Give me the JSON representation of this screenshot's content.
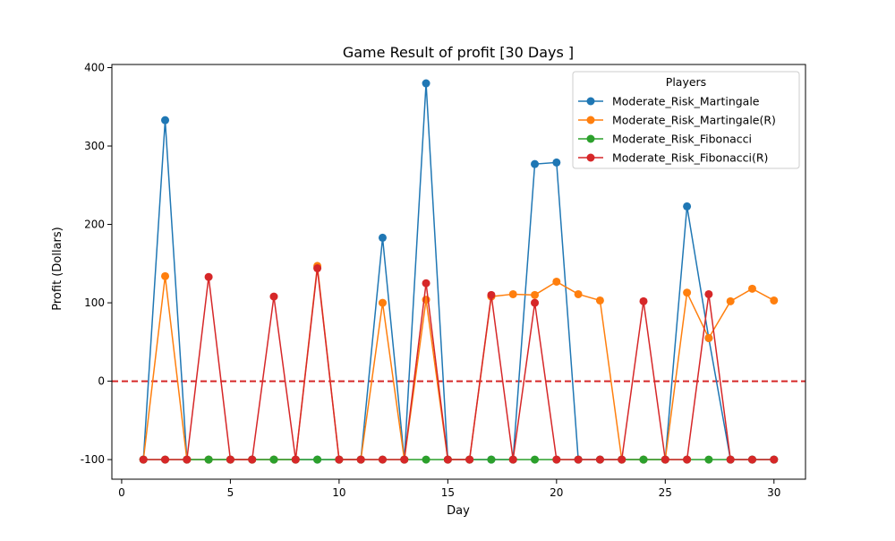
{
  "chart_data": {
    "type": "line",
    "title": "Game Result of profit [30 Days ]",
    "xlabel": "Day",
    "ylabel": "Profit (Dollars)",
    "xlim": [
      -0.45,
      31.45
    ],
    "ylim": [
      -125,
      404
    ],
    "xticks": [
      0,
      5,
      10,
      15,
      20,
      25,
      30
    ],
    "yticks": [
      -100,
      0,
      100,
      200,
      300,
      400
    ],
    "grid": false,
    "reference_line": {
      "y": 0,
      "style": "dashed",
      "color": "#d62728"
    },
    "legend": {
      "title": "Players",
      "position": "top-right"
    },
    "x": [
      1,
      2,
      3,
      4,
      5,
      6,
      7,
      8,
      9,
      10,
      11,
      12,
      13,
      14,
      15,
      16,
      17,
      18,
      19,
      20,
      21,
      22,
      23,
      24,
      25,
      26,
      27,
      28,
      29,
      30
    ],
    "series": [
      {
        "name": "Moderate_Risk_Martingale",
        "color": "#1f77b4",
        "values": [
          -100,
          333,
          -100,
          -100,
          -100,
          -100,
          -100,
          -100,
          -100,
          -100,
          -100,
          183,
          -100,
          380,
          -100,
          -100,
          -100,
          -100,
          277,
          279,
          -100,
          -100,
          -100,
          -100,
          -100,
          223,
          55,
          -100,
          -100,
          -100
        ]
      },
      {
        "name": "Moderate_Risk_Martingale(R)",
        "color": "#ff7f0e",
        "values": [
          -100,
          134,
          -100,
          -100,
          -100,
          -100,
          -100,
          -100,
          147,
          -100,
          -100,
          100,
          -100,
          104,
          -100,
          -100,
          108,
          111,
          110,
          127,
          111,
          103,
          -100,
          -100,
          -100,
          113,
          55,
          102,
          118,
          103
        ]
      },
      {
        "name": "Moderate_Risk_Fibonacci",
        "color": "#2ca02c",
        "values": [
          -100,
          -100,
          -100,
          -100,
          -100,
          -100,
          -100,
          -100,
          -100,
          -100,
          -100,
          -100,
          -100,
          -100,
          -100,
          -100,
          -100,
          -100,
          -100,
          -100,
          -100,
          -100,
          -100,
          -100,
          -100,
          -100,
          -100,
          -100,
          -100,
          -100
        ]
      },
      {
        "name": "Moderate_Risk_Fibonacci(R)",
        "color": "#d62728",
        "values": [
          -100,
          -100,
          -100,
          133,
          -100,
          -100,
          108,
          -100,
          144,
          -100,
          -100,
          -100,
          -100,
          125,
          -100,
          -100,
          110,
          -100,
          100,
          -100,
          -100,
          -100,
          -100,
          102,
          -100,
          -100,
          111,
          -100,
          -100,
          -100
        ]
      }
    ]
  }
}
